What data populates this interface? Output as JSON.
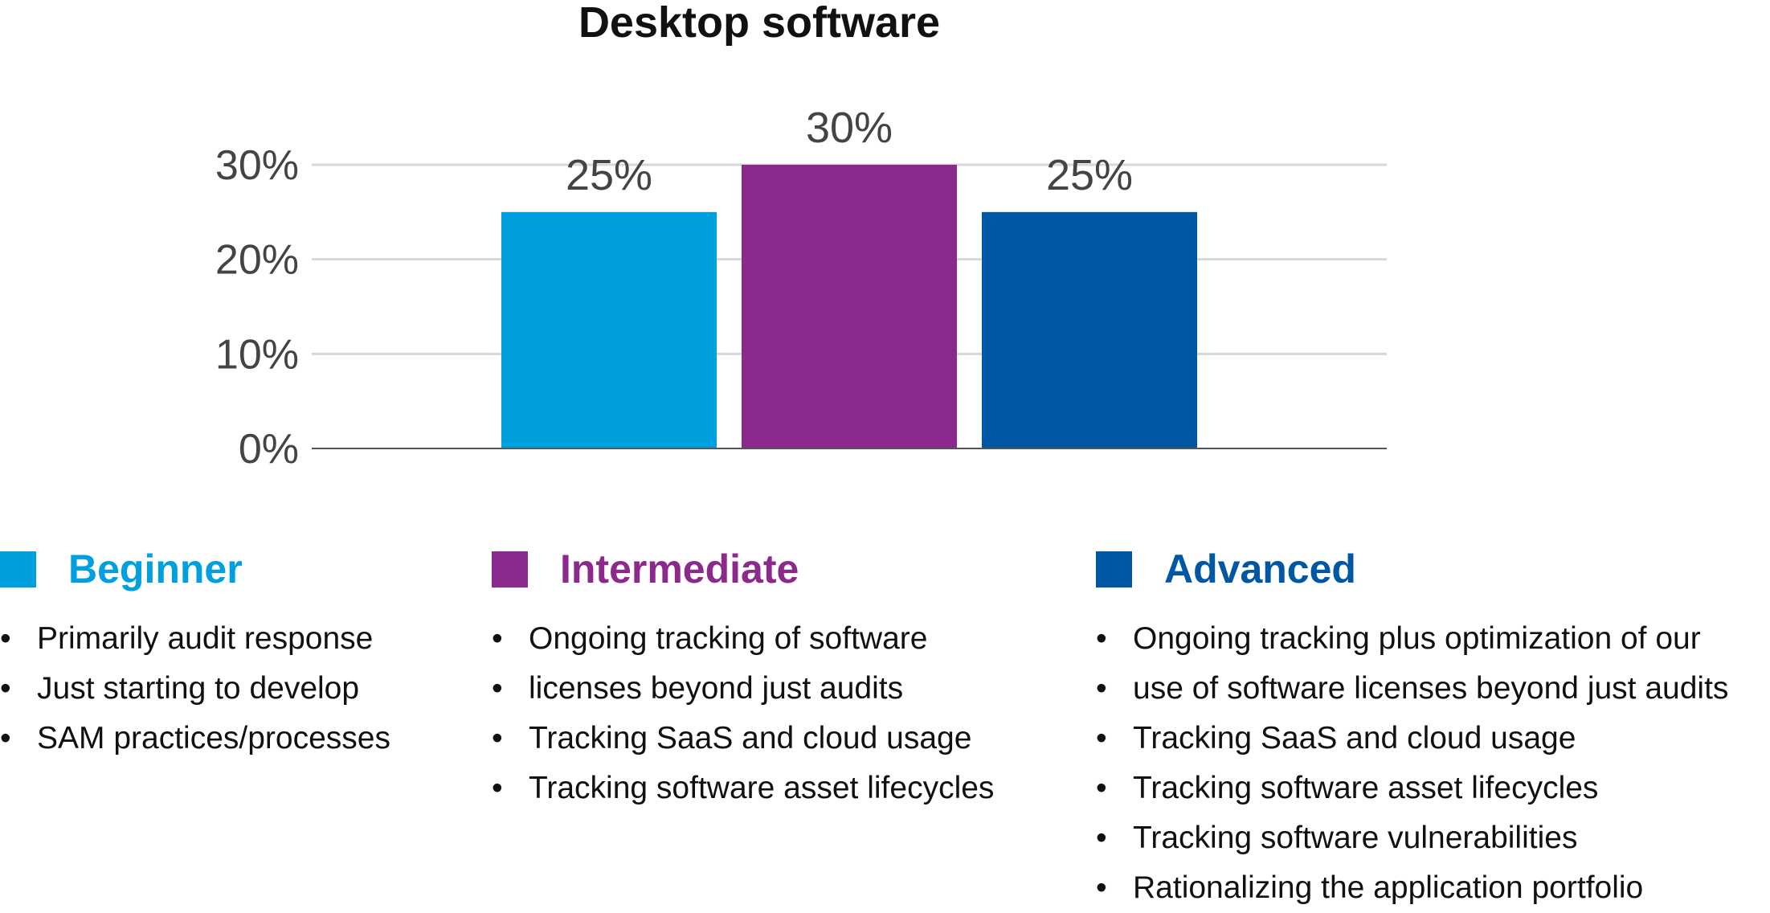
{
  "chart_data": {
    "type": "bar",
    "title": "Desktop software",
    "categories": [
      "Beginner",
      "Intermediate",
      "Advanced"
    ],
    "values": [
      25,
      30,
      25
    ],
    "data_labels": [
      "25%",
      "30%",
      "25%"
    ],
    "ylim": [
      0,
      30
    ],
    "yticks": [
      {
        "value": 0,
        "label": "0%"
      },
      {
        "value": 10,
        "label": "10%"
      },
      {
        "value": 20,
        "label": "20%"
      },
      {
        "value": 30,
        "label": "30%"
      }
    ],
    "colors": [
      "#00a0df",
      "#8b298c",
      "#0057a3"
    ],
    "grid": true,
    "xlabel": "",
    "ylabel": ""
  },
  "legend": [
    {
      "name": "Beginner",
      "color": "#00a0df",
      "items": [
        "Primarily audit response",
        "Just starting to develop",
        "SAM practices/processes"
      ]
    },
    {
      "name": "Intermediate",
      "color": "#8b298c",
      "items": [
        "Ongoing tracking of software",
        "licenses beyond just audits",
        "Tracking SaaS and cloud usage",
        "Tracking software asset lifecycles"
      ]
    },
    {
      "name": "Advanced",
      "color": "#0057a3",
      "items": [
        "Ongoing tracking plus optimization of our",
        "use of software licenses beyond just audits",
        "Tracking SaaS and cloud usage",
        "Tracking software asset lifecycles",
        "Tracking software vulnerabilities",
        "Rationalizing the application portfolio"
      ]
    }
  ]
}
